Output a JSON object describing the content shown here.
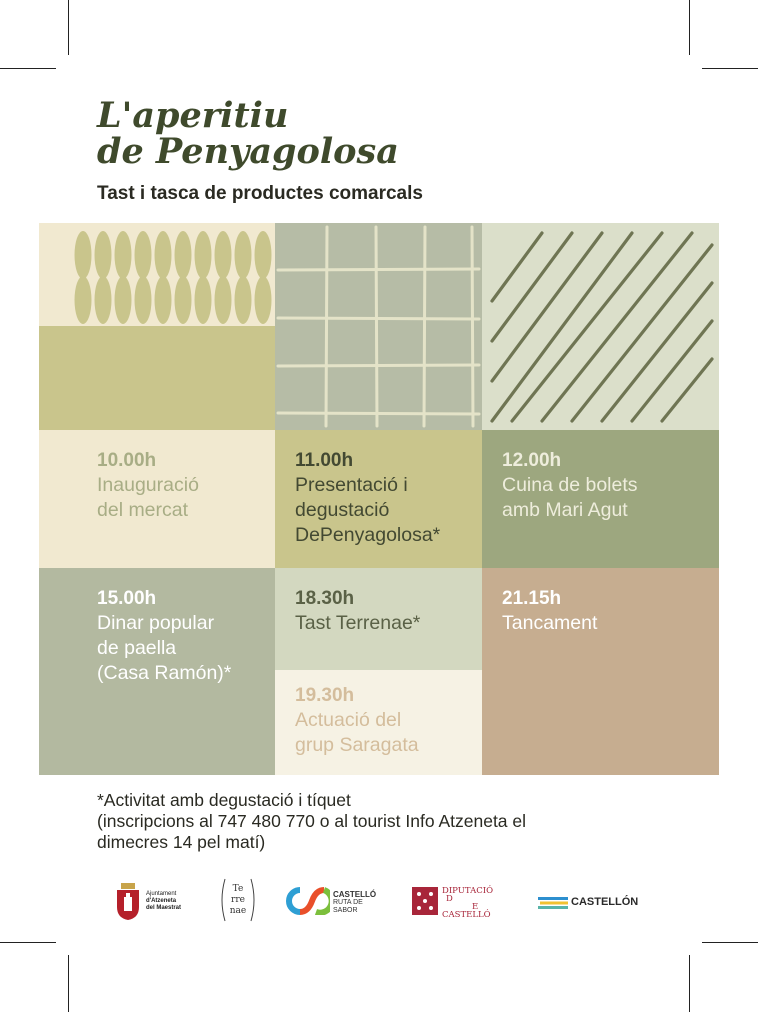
{
  "title_line1": "L'aperitiu",
  "title_line2": "de Penyagolosa",
  "subtitle": "Tast i tasca de productes comarcals",
  "colors": {
    "cream": "#f1e9d0",
    "olive": "#c9c58c",
    "sage": "#b6bca6",
    "pale_green": "#dbdfca",
    "green": "#9da77f",
    "grey_green": "#b3b9a0",
    "light_grey_green": "#d3d8c0",
    "off_white": "#f6f2e4",
    "tan": "#c6ad90",
    "title": "#3f4a2c"
  },
  "schedule": [
    {
      "time": "10.00h",
      "desc": "Inauguració\ndel mercat"
    },
    {
      "time": "11.00h",
      "desc": "Presentació i\ndegustació\nDePenyagolosa*"
    },
    {
      "time": "12.00h",
      "desc": "Cuina de bolets\namb Mari Agut"
    },
    {
      "time": "15.00h",
      "desc": "Dinar popular\nde paella\n(Casa Ramón)*"
    },
    {
      "time": "18.30h",
      "desc": "Tast Terrenae*"
    },
    {
      "time": "21.15h",
      "desc": "Tancament"
    },
    {
      "time": "19.30h",
      "desc": "Actuació del\ngrup Saragata"
    }
  ],
  "footnote_lines": [
    "*Activitat amb degustació i tíquet",
    "(inscripcions al 747 480 770 o al tourist Info Atzeneta el",
    "dimecres 14 pel matí)"
  ],
  "logos": {
    "ajuntament": {
      "icon": "town-shield-icon",
      "lines": [
        "Ajuntament",
        "d'Atzeneta",
        "del Maestrat"
      ]
    },
    "terrenae": {
      "icon": "terrenae-badge-icon",
      "lines": [
        "Te",
        "rre",
        "nae"
      ]
    },
    "ruta": {
      "icon": "ruta-sabor-icon",
      "lines": [
        "CASTELLÓ",
        "RUTA DE",
        "SABOR"
      ]
    },
    "diputacio": {
      "icon": "diputacio-crest-icon",
      "lines": [
        "DIPUTACIÓ",
        "D",
        "E",
        "CASTELLÓ"
      ]
    },
    "castellon": {
      "icon": "castellon-stripes-icon",
      "text": "CASTELLÓN"
    }
  }
}
